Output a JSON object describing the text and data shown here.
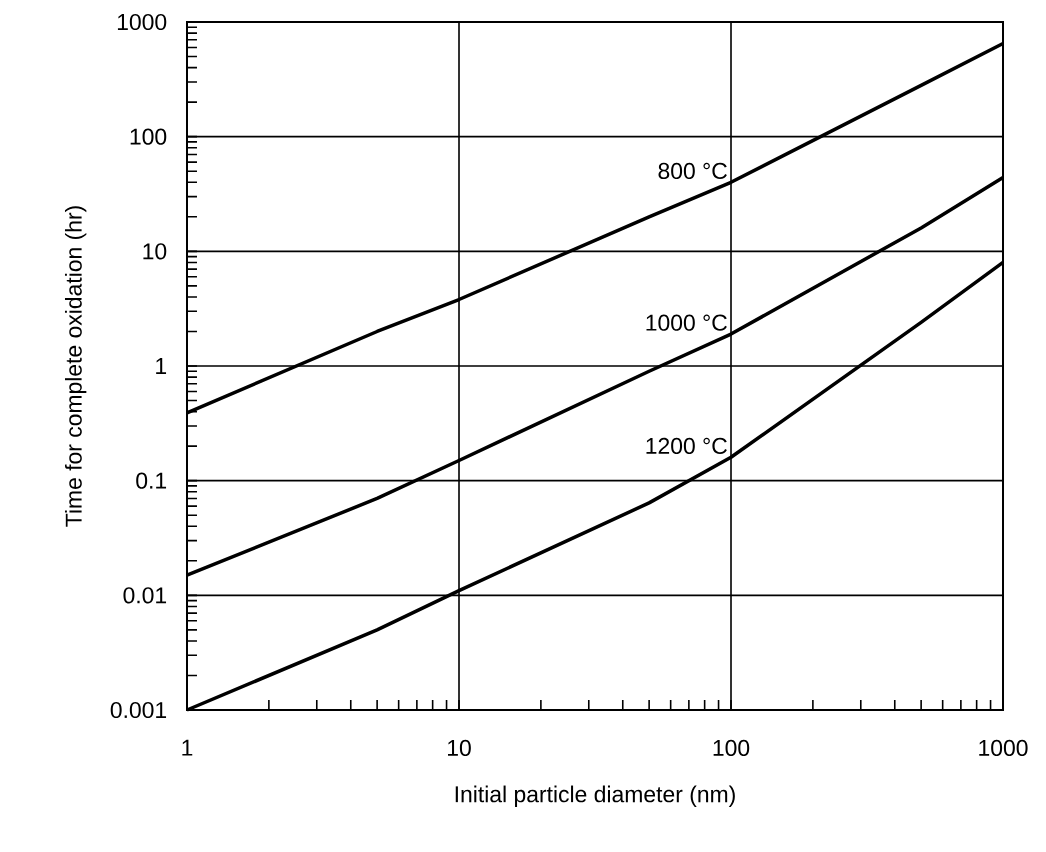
{
  "chart_data": {
    "type": "line",
    "xlabel": "Initial particle diameter (nm)",
    "ylabel": "Time for complete oxidation (hr)",
    "x": [
      1,
      5,
      10,
      50,
      100,
      500,
      1000
    ],
    "series": [
      {
        "name": "800 °C",
        "color": "#000000",
        "values": [
          0.39,
          2.0,
          3.8,
          20,
          40,
          280,
          650
        ]
      },
      {
        "name": "1000 °C",
        "color": "#000000",
        "values": [
          0.015,
          0.07,
          0.15,
          0.9,
          1.9,
          16,
          44
        ]
      },
      {
        "name": "1200 °C",
        "color": "#000000",
        "values": [
          0.001,
          0.005,
          0.011,
          0.064,
          0.16,
          2.4,
          8
        ]
      }
    ],
    "log": "xy",
    "xlim": [
      1,
      1000
    ],
    "ylim": [
      0.001,
      1000
    ],
    "xticks": [
      1,
      10,
      100,
      1000
    ],
    "yticks": [
      0.001,
      0.01,
      0.1,
      1,
      10,
      100,
      1000
    ],
    "grid": true,
    "marker": "none",
    "line_style": "solid"
  }
}
